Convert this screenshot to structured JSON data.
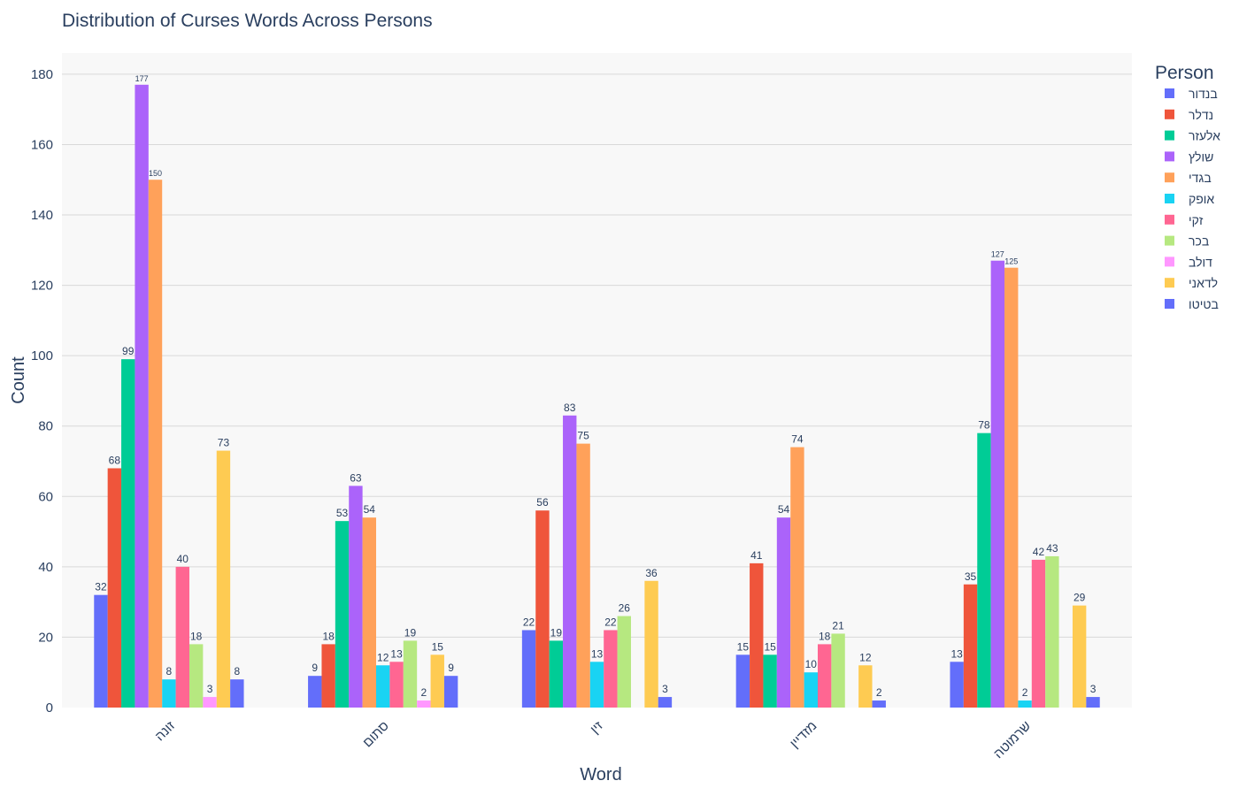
{
  "chart_data": {
    "type": "bar",
    "title": "Distribution of Curses Words Across Persons",
    "xlabel": "Word",
    "ylabel": "Count",
    "ylim": [
      0,
      186
    ],
    "yticks": [
      0,
      20,
      40,
      60,
      80,
      100,
      120,
      140,
      160,
      180
    ],
    "categories": [
      "זונה",
      "סתום",
      "זין",
      "מזדיין",
      "שרמוטה"
    ],
    "legend_title": "Person",
    "legend_placement": "top-right",
    "grid": true,
    "series": [
      {
        "name": "בנדור",
        "color": "#636efa",
        "values": [
          32,
          9,
          22,
          15,
          13
        ]
      },
      {
        "name": "נדלר",
        "color": "#ef553b",
        "values": [
          68,
          18,
          56,
          41,
          35
        ]
      },
      {
        "name": "אלעזר",
        "color": "#00cc96",
        "values": [
          99,
          53,
          19,
          15,
          78
        ]
      },
      {
        "name": "שולץ",
        "color": "#ab63fa",
        "values": [
          177,
          63,
          83,
          54,
          127
        ]
      },
      {
        "name": "בגדי",
        "color": "#ffa15a",
        "values": [
          150,
          54,
          75,
          74,
          125
        ]
      },
      {
        "name": "אופק",
        "color": "#19d3f3",
        "values": [
          8,
          12,
          13,
          10,
          2
        ]
      },
      {
        "name": "זקי",
        "color": "#ff6692",
        "values": [
          40,
          13,
          22,
          18,
          42
        ]
      },
      {
        "name": "בכר",
        "color": "#b6e880",
        "values": [
          18,
          19,
          26,
          21,
          43
        ]
      },
      {
        "name": "דולב",
        "color": "#ff97ff",
        "values": [
          3,
          2,
          null,
          null,
          null
        ]
      },
      {
        "name": "לדאני",
        "color": "#fecb52",
        "values": [
          73,
          15,
          36,
          12,
          29
        ]
      },
      {
        "name": "בטיטו",
        "color": "#636efa",
        "values": [
          8,
          9,
          3,
          2,
          3
        ]
      }
    ]
  }
}
